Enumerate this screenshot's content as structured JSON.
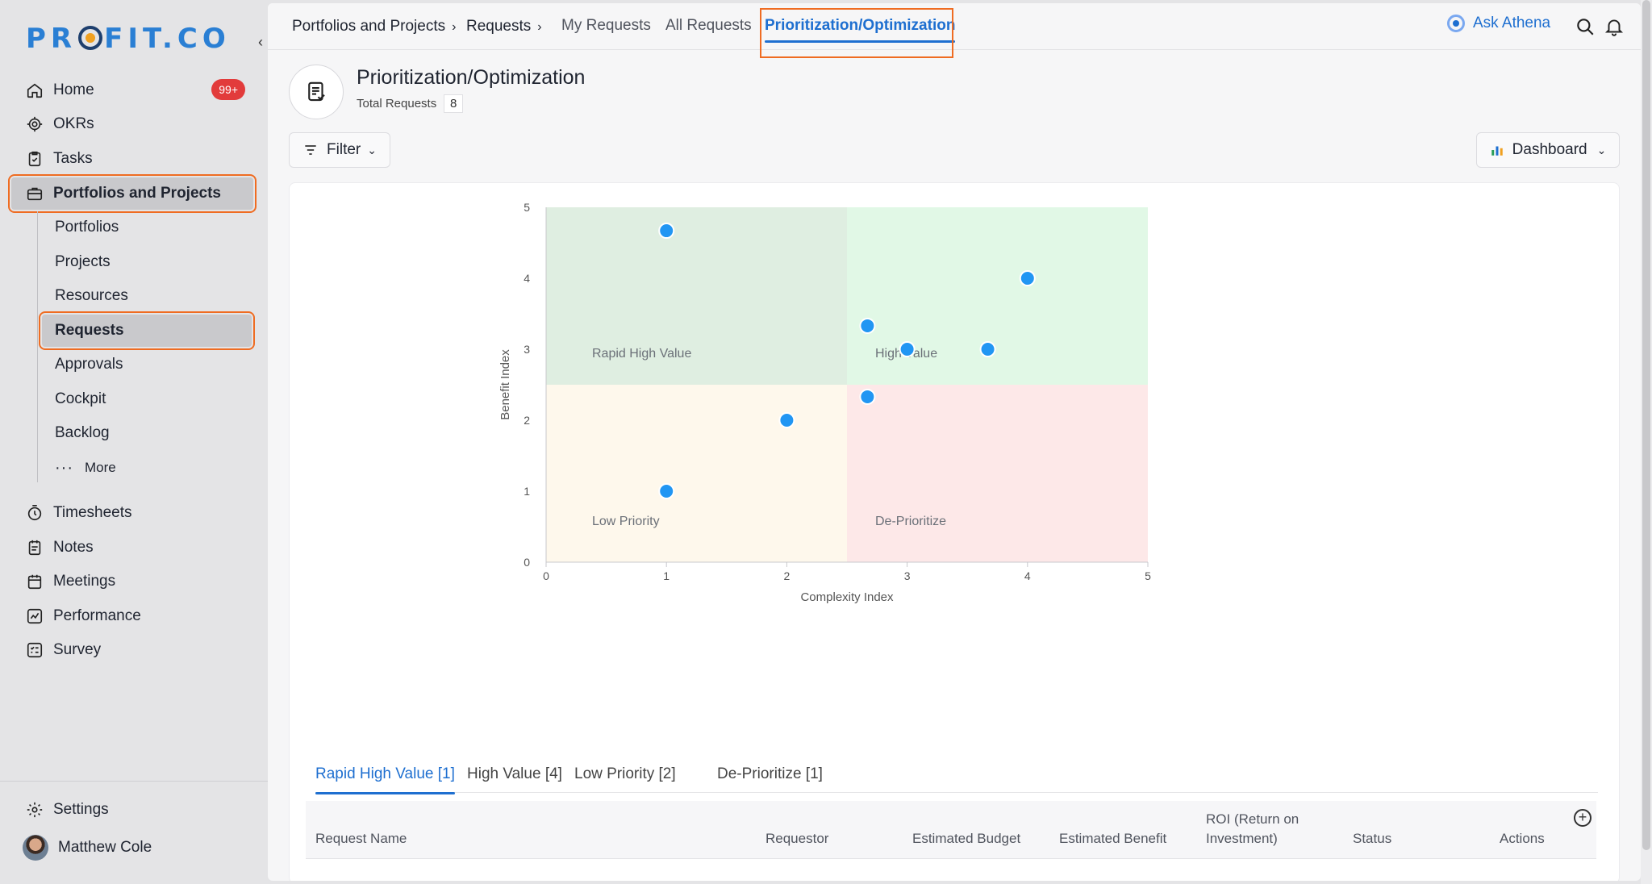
{
  "logo": {
    "text_before": "PR",
    "text_after": "FIT.CO"
  },
  "sidebar": {
    "items": [
      {
        "label": "Home",
        "badge": "99+"
      },
      {
        "label": "OKRs"
      },
      {
        "label": "Tasks"
      },
      {
        "label": "Portfolios and Projects"
      }
    ],
    "sub_items": [
      "Portfolios",
      "Projects",
      "Resources",
      "Requests",
      "Approvals",
      "Cockpit",
      "Backlog",
      "More"
    ],
    "lower_items": [
      "Timesheets",
      "Notes",
      "Meetings",
      "Performance",
      "Survey"
    ],
    "settings_label": "Settings",
    "user_name": "Matthew Cole"
  },
  "topbar": {
    "breadcrumb": [
      "Portfolios and Projects",
      "Requests"
    ],
    "tabs": [
      "My Requests",
      "All Requests",
      "Prioritization/Optimization"
    ],
    "ask_label": "Ask Athena"
  },
  "page": {
    "title": "Prioritization/Optimization",
    "total_label": "Total Requests",
    "total_count": "8",
    "filter_label": "Filter",
    "view_label": "Dashboard"
  },
  "colors": {
    "accent": "#1e6fd0",
    "point": "#2196f3",
    "highlight": "#ef6c22"
  },
  "chart_data": {
    "type": "scatter",
    "xlabel": "Complexity Index",
    "ylabel": "Benefit Index",
    "xlim": [
      0,
      5
    ],
    "ylim": [
      0,
      5
    ],
    "xticks": [
      "0",
      "1",
      "2",
      "3",
      "4",
      "5"
    ],
    "yticks": [
      "0",
      "1",
      "2",
      "3",
      "4",
      "5"
    ],
    "quadrants": [
      {
        "label": "Rapid High Value",
        "color": "#dfeee1"
      },
      {
        "label": "High Value",
        "color": "#e1f8e6"
      },
      {
        "label": "Low Priority",
        "color": "#fef8ec"
      },
      {
        "label": "De-Prioritize",
        "color": "#fde8e8"
      }
    ],
    "points": [
      {
        "x": 1.0,
        "y": 4.67
      },
      {
        "x": 4.0,
        "y": 4.0
      },
      {
        "x": 2.67,
        "y": 3.33
      },
      {
        "x": 3.0,
        "y": 3.0
      },
      {
        "x": 3.67,
        "y": 3.0
      },
      {
        "x": 2.67,
        "y": 2.33
      },
      {
        "x": 2.0,
        "y": 2.0
      },
      {
        "x": 1.0,
        "y": 1.0
      }
    ]
  },
  "quadrant_tabs": [
    "Rapid High Value [1]",
    "High Value [4]",
    "Low Priority [2]",
    "De-Prioritize [1]"
  ],
  "table": {
    "columns": [
      "Request Name",
      "Requestor",
      "Estimated Budget",
      "Estimated Benefit",
      "ROI (Return on Investment)",
      "Status",
      "Actions"
    ]
  }
}
